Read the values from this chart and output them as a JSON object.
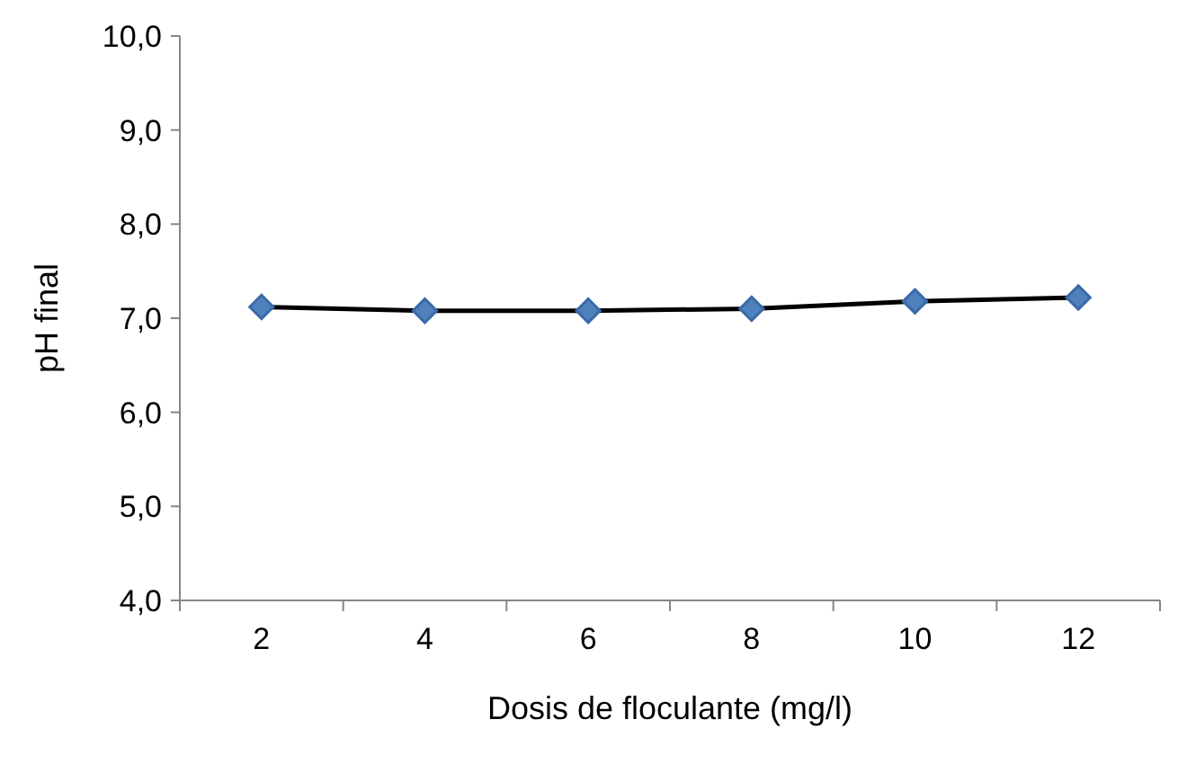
{
  "chart_data": {
    "type": "line",
    "xlabel": "Dosis de floculante (mg/l)",
    "ylabel": "pH final",
    "categories": [
      "2",
      "4",
      "6",
      "8",
      "10",
      "12"
    ],
    "series": [
      {
        "color": "#4f81bd",
        "values": [
          7.12,
          7.08,
          7.08,
          7.1,
          7.18,
          7.22
        ]
      }
    ],
    "ylim": [
      4,
      10
    ],
    "yticks": [
      {
        "value": 4,
        "label": "4,0"
      },
      {
        "value": 5,
        "label": "5,0"
      },
      {
        "value": 6,
        "label": "6,0"
      },
      {
        "value": 7,
        "label": "7,0"
      },
      {
        "value": 8,
        "label": "8,0"
      },
      {
        "value": 9,
        "label": "9,0"
      },
      {
        "value": 10,
        "label": "10,0"
      }
    ],
    "marker": "diamond",
    "grid": false
  }
}
